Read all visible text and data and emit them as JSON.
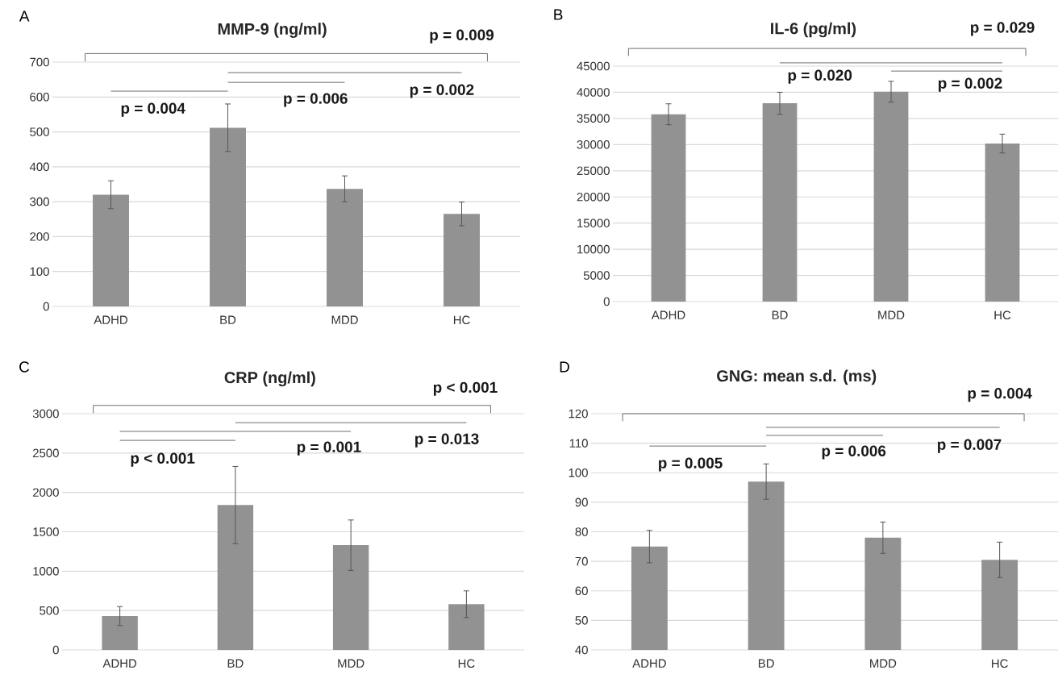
{
  "chart_data": [
    {
      "type": "bar",
      "title": "MMP-9 (ng/ml)",
      "categories": [
        "ADHD",
        "BD",
        "MDD",
        "HC"
      ],
      "values": [
        320,
        512,
        337,
        265
      ],
      "errors": [
        40,
        68,
        37,
        34
      ],
      "color": "#929292",
      "ylim": [
        0,
        700
      ],
      "yticks": [
        0,
        100,
        200,
        300,
        400,
        500,
        600,
        700
      ],
      "grid": "y",
      "annotations": [
        "A",
        "p = 0.009",
        "p = 0.004",
        "p = 0.006",
        "p = 0.002"
      ]
    },
    {
      "type": "bar",
      "title": "IL-6 (pg/ml)",
      "categories": [
        "ADHD",
        "BD",
        "MDD",
        "HC"
      ],
      "values": [
        35800,
        37900,
        40100,
        30200
      ],
      "errors": [
        2000,
        2100,
        2000,
        1800
      ],
      "color": "#929292",
      "ylim": [
        0,
        45000
      ],
      "yticks": [
        0,
        5000,
        10000,
        15000,
        20000,
        25000,
        30000,
        35000,
        40000,
        45000
      ],
      "grid": "y",
      "annotations": [
        "B",
        "p = 0.029",
        "p = 0.020",
        "p = 0.002"
      ]
    },
    {
      "type": "bar",
      "title": "CRP (ng/ml)",
      "categories": [
        "ADHD",
        "BD",
        "MDD",
        "HC"
      ],
      "values": [
        430,
        1840,
        1330,
        580
      ],
      "errors": [
        120,
        490,
        320,
        170
      ],
      "color": "#929292",
      "ylim": [
        0,
        3000
      ],
      "yticks": [
        0,
        500,
        1000,
        1500,
        2000,
        2500,
        3000
      ],
      "grid": "y",
      "annotations": [
        "C",
        "p < 0.001",
        "p < 0.001",
        "p = 0.001",
        "p = 0.013"
      ]
    },
    {
      "type": "bar",
      "title": "GNG: mean s.d. (ms)",
      "categories": [
        "ADHD",
        "BD",
        "MDD",
        "HC"
      ],
      "values": [
        75,
        97,
        78,
        70.5
      ],
      "errors": [
        5.5,
        6,
        5.3,
        6
      ],
      "color": "#929292",
      "ylim": [
        40,
        120
      ],
      "yticks": [
        40,
        50,
        60,
        70,
        80,
        90,
        100,
        110,
        120
      ],
      "grid": "y",
      "annotations": [
        "D",
        "p = 0.004",
        "p = 0.005",
        "p = 0.006",
        "p = 0.007"
      ]
    }
  ]
}
